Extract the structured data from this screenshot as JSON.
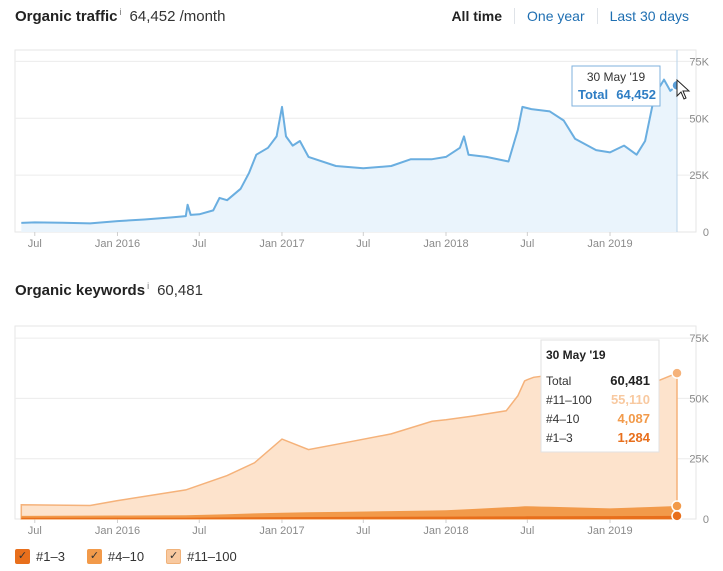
{
  "traffic": {
    "title": "Organic traffic",
    "info": "i",
    "value": "64,452 /month",
    "tabs": [
      "All time",
      "One year",
      "Last 30 days"
    ],
    "active_tab": "All time",
    "tooltip": {
      "date": "30 May '19",
      "label": "Total",
      "value": "64,452"
    }
  },
  "keywords": {
    "title": "Organic keywords",
    "info": "i",
    "value": "60,481",
    "tooltip": {
      "date": "30 May '19",
      "rows": [
        {
          "label": "Total",
          "value": "60,481"
        },
        {
          "label": "#11–100",
          "value": "55,110"
        },
        {
          "label": "#4–10",
          "value": "4,087"
        },
        {
          "label": "#1–3",
          "value": "1,284"
        }
      ]
    },
    "legend": [
      {
        "label": "#1–3",
        "checked": true,
        "color": "#e86f1c"
      },
      {
        "label": "#4–10",
        "checked": true,
        "color": "#f29a4a"
      },
      {
        "label": "#11–100",
        "checked": true,
        "color": "#f8c9a0"
      }
    ]
  },
  "colors": {
    "traffic_line": "#6aaee0",
    "traffic_fill": "#eaf4fc",
    "traffic_dot": "#5b9fd8",
    "tooltip_border": "#7fb2de",
    "tooltip_total": "#2f7ec4",
    "kw_top3": "#e86f1c",
    "kw_4to10": "#f29a4a",
    "kw_11to100": "#f8c9a0",
    "kw_11to100_line": "#f5b27a"
  },
  "chart_data": [
    {
      "type": "area",
      "name": "traffic",
      "x_ticks": [
        "Jul",
        "Jan 2016",
        "Jul",
        "Jan 2017",
        "Jul",
        "Jan 2018",
        "Jul",
        "Jan 2019"
      ],
      "y_ticks": [
        "0",
        "25K",
        "50K",
        "75K"
      ],
      "ylim": [
        0,
        80000
      ],
      "grid": true,
      "series": [
        {
          "values": [
            [
              "2015-06-01",
              4000
            ],
            [
              "2015-07-01",
              4200
            ],
            [
              "2015-09-01",
              4100
            ],
            [
              "2015-11-01",
              3800
            ],
            [
              "2016-01-01",
              4800
            ],
            [
              "2016-03-01",
              5500
            ],
            [
              "2016-05-01",
              6400
            ],
            [
              "2016-06-01",
              7000
            ],
            [
              "2016-06-05",
              12000
            ],
            [
              "2016-06-12",
              7500
            ],
            [
              "2016-07-01",
              7800
            ],
            [
              "2016-08-01",
              9500
            ],
            [
              "2016-08-15",
              15000
            ],
            [
              "2016-09-01",
              14000
            ],
            [
              "2016-10-01",
              19000
            ],
            [
              "2016-10-20",
              26000
            ],
            [
              "2016-11-05",
              34000
            ],
            [
              "2016-12-01",
              37000
            ],
            [
              "2016-12-20",
              42000
            ],
            [
              "2017-01-01",
              55000
            ],
            [
              "2017-01-10",
              42000
            ],
            [
              "2017-01-25",
              38000
            ],
            [
              "2017-02-10",
              40000
            ],
            [
              "2017-03-01",
              33000
            ],
            [
              "2017-05-01",
              29000
            ],
            [
              "2017-07-01",
              28000
            ],
            [
              "2017-09-01",
              29000
            ],
            [
              "2017-10-15",
              32000
            ],
            [
              "2017-12-01",
              32000
            ],
            [
              "2018-01-01",
              33000
            ],
            [
              "2018-02-01",
              37000
            ],
            [
              "2018-02-10",
              42000
            ],
            [
              "2018-02-20",
              34000
            ],
            [
              "2018-04-01",
              33000
            ],
            [
              "2018-05-20",
              31000
            ],
            [
              "2018-06-10",
              45000
            ],
            [
              "2018-06-20",
              55000
            ],
            [
              "2018-07-10",
              54000
            ],
            [
              "2018-08-20",
              53000
            ],
            [
              "2018-09-20",
              49000
            ],
            [
              "2018-10-15",
              41000
            ],
            [
              "2018-12-01",
              36000
            ],
            [
              "2019-01-01",
              35000
            ],
            [
              "2019-02-01",
              38000
            ],
            [
              "2019-03-01",
              34000
            ],
            [
              "2019-03-20",
              40000
            ],
            [
              "2019-04-10",
              60000
            ],
            [
              "2019-05-01",
              67000
            ],
            [
              "2019-05-15",
              62000
            ],
            [
              "2019-05-30",
              64452
            ]
          ]
        }
      ]
    },
    {
      "type": "area",
      "name": "keywords",
      "x_ticks": [
        "Jul",
        "Jan 2016",
        "Jul",
        "Jan 2017",
        "Jul",
        "Jan 2018",
        "Jul",
        "Jan 2019"
      ],
      "y_ticks": [
        "0",
        "25K",
        "50K",
        "75K"
      ],
      "ylim": [
        0,
        80000
      ],
      "grid": true,
      "stacked": true,
      "series": [
        {
          "name": "#1–3",
          "values": [
            [
              "2015-06-01",
              500
            ],
            [
              "2016-06-01",
              550
            ],
            [
              "2017-01-01",
              800
            ],
            [
              "2018-01-01",
              1000
            ],
            [
              "2018-07-01",
              1100
            ],
            [
              "2019-01-01",
              1200
            ],
            [
              "2019-05-30",
              1284
            ]
          ]
        },
        {
          "name": "#4–10",
          "values": [
            [
              "2015-06-01",
              800
            ],
            [
              "2016-06-01",
              1000
            ],
            [
              "2017-01-01",
              1800
            ],
            [
              "2018-01-01",
              2600
            ],
            [
              "2018-07-01",
              4200
            ],
            [
              "2019-01-01",
              3200
            ],
            [
              "2019-05-30",
              4087
            ]
          ]
        },
        {
          "name": "#11–100",
          "values": [
            [
              "2015-06-01",
              4600
            ],
            [
              "2015-11-01",
              4200
            ],
            [
              "2016-01-01",
              6200
            ],
            [
              "2016-06-01",
              10500
            ],
            [
              "2016-09-01",
              16000
            ],
            [
              "2016-11-01",
              21000
            ],
            [
              "2017-01-01",
              30500
            ],
            [
              "2017-03-01",
              26000
            ],
            [
              "2017-06-01",
              29000
            ],
            [
              "2017-09-01",
              32000
            ],
            [
              "2017-12-01",
              37000
            ],
            [
              "2018-03-01",
              38500
            ],
            [
              "2018-05-15",
              40000
            ],
            [
              "2018-06-10",
              46000
            ],
            [
              "2018-06-25",
              52000
            ],
            [
              "2018-07-15",
              53500
            ],
            [
              "2018-08-01",
              54000
            ],
            [
              "2018-08-20",
              44000
            ],
            [
              "2018-12-01",
              46000
            ],
            [
              "2019-04-01",
              51000
            ],
            [
              "2019-05-30",
              55110
            ]
          ]
        }
      ]
    }
  ]
}
